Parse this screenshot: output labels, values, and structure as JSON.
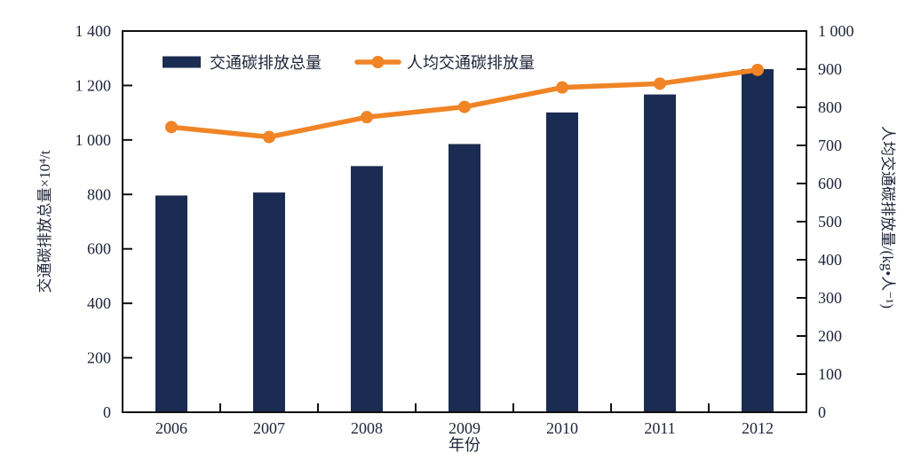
{
  "chart_data": {
    "type": "bar+line",
    "categories": [
      "2006",
      "2007",
      "2008",
      "2009",
      "2010",
      "2011",
      "2012"
    ],
    "series": [
      {
        "name": "交通碳排放总量",
        "type": "bar",
        "axis": "left",
        "color": "#1b2c52",
        "values": [
          796,
          807,
          904,
          985,
          1101,
          1167,
          1260
        ]
      },
      {
        "name": "人均交通碳排放量",
        "type": "line",
        "axis": "right",
        "color": "#f08426",
        "values": [
          748,
          722,
          774,
          801,
          852,
          862,
          898
        ]
      }
    ],
    "left_axis": {
      "label": "交通碳排放总量×10⁴/t",
      "min": 0,
      "max": 1400,
      "step": 200,
      "tick_labels": [
        "0",
        "200",
        "400",
        "600",
        "800",
        "1 000",
        "1 200",
        "1 400"
      ]
    },
    "right_axis": {
      "label": "人均交通碳排放量/(kg•人⁻¹)",
      "min": 0,
      "max": 1000,
      "step": 100,
      "tick_labels": [
        "0",
        "100",
        "200",
        "300",
        "400",
        "500",
        "600",
        "700",
        "800",
        "900",
        "1 000"
      ]
    },
    "x_axis": {
      "label": "年份"
    },
    "legend": {
      "position": "top-inside",
      "items": [
        "交通碳排放总量",
        "人均交通碳排放量"
      ]
    },
    "grid": false
  },
  "colors": {
    "bar": "#1b2c52",
    "line": "#f08426",
    "axis": "#101010",
    "text": "#1e2438",
    "background": "#ffffff"
  }
}
